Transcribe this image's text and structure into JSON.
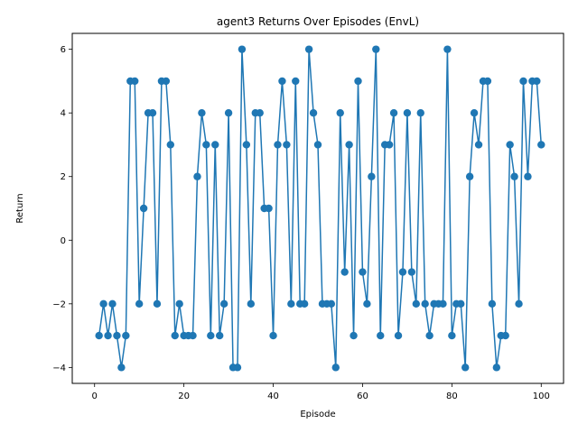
{
  "chart_data": {
    "type": "line",
    "title": "agent3 Returns Over Episodes (EnvL)",
    "xlabel": "Episode",
    "ylabel": "Return",
    "xlim": [
      -5,
      105
    ],
    "ylim": [
      -4.5,
      6.5
    ],
    "xticks": [
      0,
      20,
      40,
      60,
      80,
      100
    ],
    "yticks": [
      -4,
      -2,
      0,
      2,
      4,
      6
    ],
    "grid": false,
    "marker": "circle",
    "color": "#1f77b4",
    "series": [
      {
        "x": [
          1,
          2,
          3,
          4,
          5,
          6,
          7,
          8,
          9,
          10,
          11,
          12,
          13,
          14,
          15,
          16,
          17,
          18,
          19,
          20,
          21,
          22,
          23,
          24,
          25,
          26,
          27,
          28,
          29,
          30,
          31,
          32,
          33,
          34,
          35,
          36,
          37,
          38,
          39,
          40,
          41,
          42,
          43,
          44,
          45,
          46,
          47,
          48,
          49,
          50,
          51,
          52,
          53,
          54,
          55,
          56,
          57,
          58,
          59,
          60,
          61,
          62,
          63,
          64,
          65,
          66,
          67,
          68,
          69,
          70,
          71,
          72,
          73,
          74,
          75,
          76,
          77,
          78,
          79,
          80,
          81,
          82,
          83,
          84,
          85,
          86,
          87,
          88,
          89,
          90,
          91,
          92,
          93,
          94,
          95,
          96,
          97,
          98,
          99,
          100
        ],
        "y": [
          -3,
          -2,
          -3,
          -2,
          -3,
          -4,
          -3,
          5,
          5,
          -2,
          1,
          4,
          4,
          -2,
          5,
          5,
          3,
          -3,
          -2,
          -3,
          -3,
          -3,
          2,
          4,
          3,
          -3,
          3,
          -3,
          -2,
          4,
          -4,
          -4,
          6,
          3,
          -2,
          4,
          4,
          1,
          1,
          -3,
          3,
          5,
          3,
          -2,
          5,
          -2,
          -2,
          6,
          4,
          3,
          -2,
          -2,
          -2,
          -4,
          4,
          -1,
          3,
          -3,
          5,
          -1,
          -2,
          2,
          6,
          -3,
          3,
          3,
          4,
          -3,
          -1,
          4,
          -1,
          -2,
          4,
          -2,
          -3,
          -2,
          -2,
          -2,
          6,
          -3,
          -2,
          -2,
          -4,
          2,
          4,
          3,
          5,
          5,
          -2,
          -4,
          -3,
          -3,
          3,
          2,
          -2,
          5,
          2,
          5,
          5,
          3
        ]
      }
    ]
  }
}
